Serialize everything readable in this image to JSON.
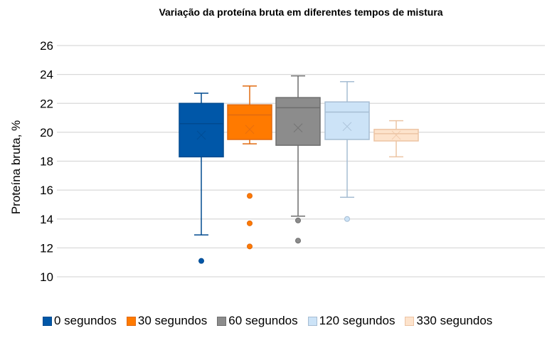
{
  "chart_data": {
    "type": "box",
    "title": "Variação da proteína bruta em diferentes tempos de mistura",
    "xlabel": "",
    "ylabel": "Proteína bruta, %",
    "ylim": [
      10,
      26
    ],
    "yticks": [
      "10",
      "12",
      "14",
      "16",
      "18",
      "20",
      "22",
      "24",
      "26"
    ],
    "grid": true,
    "legend_position": "bottom",
    "series": [
      {
        "name": "0 segundos",
        "color": "#0057a8",
        "edge": "#004a8f",
        "whisker_low": 12.9,
        "q1": 18.3,
        "median": 20.6,
        "q3": 22.0,
        "whisker_high": 22.7,
        "mean": 19.8,
        "outliers": [
          11.1
        ]
      },
      {
        "name": "30 segundos",
        "color": "#ff7a00",
        "edge": "#e06a10",
        "whisker_low": 19.2,
        "q1": 19.5,
        "median": 21.2,
        "q3": 21.9,
        "whisker_high": 23.2,
        "mean": 20.2,
        "outliers": [
          15.6,
          13.7,
          12.1
        ]
      },
      {
        "name": "60 segundos",
        "color": "#8c8c8c",
        "edge": "#6e6e6e",
        "whisker_low": 14.2,
        "q1": 19.1,
        "median": 21.7,
        "q3": 22.4,
        "whisker_high": 23.9,
        "mean": 20.3,
        "outliers": [
          13.9,
          12.5
        ]
      },
      {
        "name": "120 segundos",
        "color": "#cce3f7",
        "edge": "#a6bdd3",
        "whisker_low": 15.5,
        "q1": 19.5,
        "median": 21.4,
        "q3": 22.1,
        "whisker_high": 23.5,
        "mean": 20.4,
        "outliers": [
          14.0
        ]
      },
      {
        "name": "330 segundos",
        "color": "#fde3cc",
        "edge": "#ecc4a4",
        "whisker_low": 18.3,
        "q1": 19.4,
        "median": 19.9,
        "q3": 20.2,
        "whisker_high": 20.8,
        "mean": 19.8,
        "outliers": []
      }
    ]
  }
}
